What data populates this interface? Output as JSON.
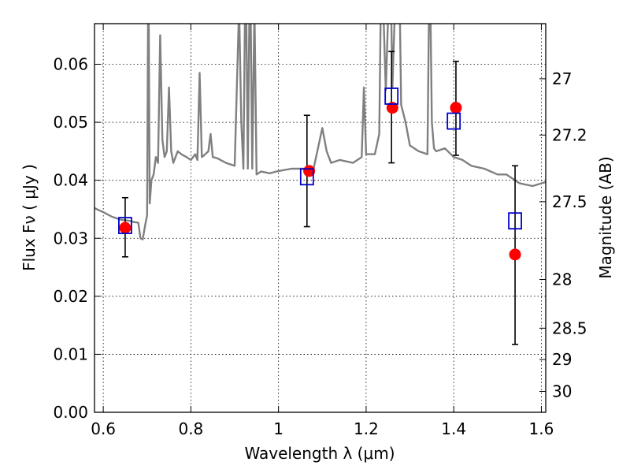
{
  "chart_data": {
    "type": "scatter",
    "xlabel": "Wavelength  λ (μm)",
    "ylabel": "Flux  Fν  ( μJy )",
    "y2label": "Magnitude (AB)",
    "xlim": [
      0.58,
      1.61
    ],
    "ylim": [
      0.0,
      0.067
    ],
    "grid": true,
    "x_ticks": [
      0.6,
      0.8,
      1.0,
      1.2,
      1.4,
      1.6
    ],
    "x_tick_labels": [
      "0.6",
      "0.8",
      "1",
      "1.2",
      "1.4",
      "1.6"
    ],
    "y_ticks": [
      0.0,
      0.01,
      0.02,
      0.03,
      0.04,
      0.05,
      0.06
    ],
    "y_tick_labels": [
      "0.00",
      "0.01",
      "0.02",
      "0.03",
      "0.04",
      "0.05",
      "0.06"
    ],
    "mag_ticks": [
      {
        "label": "27",
        "flux": 0.0575
      },
      {
        "label": "27.2",
        "flux": 0.0478
      },
      {
        "label": "27.5",
        "flux": 0.0363
      },
      {
        "label": "28",
        "flux": 0.0229
      },
      {
        "label": "28.5",
        "flux": 0.0145
      },
      {
        "label": "29",
        "flux": 0.0091
      },
      {
        "label": "30",
        "flux": 0.0036
      }
    ],
    "series": [
      {
        "type": "line",
        "color": "#808080",
        "x": [
          0.58,
          0.6,
          0.62,
          0.64,
          0.66,
          0.67,
          0.68,
          0.685,
          0.69,
          0.695,
          0.7,
          0.703,
          0.706,
          0.71,
          0.715,
          0.72,
          0.725,
          0.73,
          0.735,
          0.74,
          0.745,
          0.75,
          0.755,
          0.76,
          0.765,
          0.77,
          0.78,
          0.79,
          0.8,
          0.81,
          0.815,
          0.82,
          0.825,
          0.83,
          0.84,
          0.845,
          0.85,
          0.86,
          0.88,
          0.9,
          0.91,
          0.915,
          0.92,
          0.925,
          0.93,
          0.935,
          0.94,
          0.945,
          0.95,
          0.96,
          0.98,
          1.0,
          1.03,
          1.06,
          1.08,
          1.1,
          1.11,
          1.12,
          1.14,
          1.17,
          1.19,
          1.195,
          1.2,
          1.22,
          1.23,
          1.235,
          1.245,
          1.255,
          1.26,
          1.27,
          1.275,
          1.28,
          1.29,
          1.3,
          1.32,
          1.34,
          1.345,
          1.35,
          1.355,
          1.36,
          1.38,
          1.4,
          1.42,
          1.44,
          1.47,
          1.5,
          1.52,
          1.55,
          1.58,
          1.61
        ],
        "y": [
          0.0352,
          0.0345,
          0.0337,
          0.0332,
          0.033,
          0.0328,
          0.0327,
          0.03,
          0.0298,
          0.032,
          0.034,
          0.08,
          0.036,
          0.04,
          0.041,
          0.044,
          0.043,
          0.065,
          0.047,
          0.044,
          0.045,
          0.056,
          0.045,
          0.043,
          0.044,
          0.045,
          0.0444,
          0.044,
          0.0435,
          0.0445,
          0.0435,
          0.0585,
          0.044,
          0.0443,
          0.045,
          0.048,
          0.044,
          0.0438,
          0.043,
          0.0425,
          0.07,
          0.05,
          0.042,
          0.08,
          0.042,
          0.08,
          0.042,
          0.07,
          0.041,
          0.0415,
          0.0412,
          0.0416,
          0.042,
          0.042,
          0.042,
          0.049,
          0.045,
          0.043,
          0.0435,
          0.043,
          0.044,
          0.056,
          0.0445,
          0.0445,
          0.048,
          0.08,
          0.0555,
          0.08,
          0.056,
          0.08,
          0.08,
          0.053,
          0.05,
          0.046,
          0.045,
          0.0445,
          0.08,
          0.05,
          0.0455,
          0.045,
          0.0455,
          0.044,
          0.0435,
          0.0425,
          0.042,
          0.041,
          0.041,
          0.0395,
          0.039,
          0.0397
        ]
      },
      {
        "type": "scatter",
        "marker": "circle",
        "color": "#ff0000",
        "x": [
          0.65,
          1.07,
          1.26,
          1.405,
          1.54
        ],
        "y": [
          0.0318,
          0.0416,
          0.0525,
          0.0525,
          0.0272
        ]
      },
      {
        "type": "scatter",
        "marker": "open-square",
        "color": "#0000cc",
        "x": [
          0.65,
          1.065,
          1.258,
          1.4,
          1.54
        ],
        "y": [
          0.0322,
          0.0406,
          0.0545,
          0.0502,
          0.033
        ]
      },
      {
        "type": "errorbar",
        "color": "#000000",
        "x": [
          0.65,
          1.065,
          1.258,
          1.405,
          1.54
        ],
        "y_low": [
          0.0268,
          0.032,
          0.043,
          0.0443,
          0.0117
        ],
        "y_high": [
          0.037,
          0.0512,
          0.0622,
          0.0605,
          0.0425
        ]
      }
    ]
  }
}
